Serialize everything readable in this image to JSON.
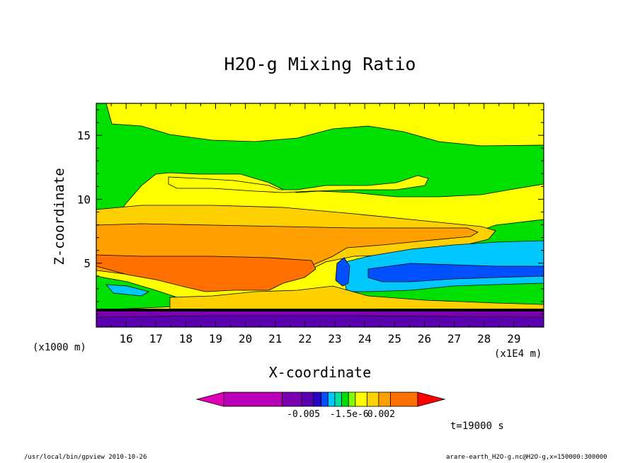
{
  "chart_data": {
    "type": "heatmap",
    "title": "H2O-g Mixing Ratio",
    "xlabel": "X-coordinate",
    "ylabel": "Z-coordinate",
    "x_unit_note": "(x1E4 m)",
    "y_unit_note": "(x1000 m)",
    "xlim": [
      15,
      30
    ],
    "ylim": [
      0,
      17.5
    ],
    "x_ticks": [
      16,
      17,
      18,
      19,
      20,
      21,
      22,
      23,
      24,
      25,
      26,
      27,
      28,
      29
    ],
    "y_ticks": [
      5,
      10,
      15
    ],
    "colorbar": {
      "colors": [
        "#e000b8",
        "#b800b8",
        "#7a00b0",
        "#5a00b0",
        "#2a00c8",
        "#0050ff",
        "#00c8ff",
        "#00e0a0",
        "#00e000",
        "#80ff00",
        "#ffff00",
        "#ffd000",
        "#ffa000",
        "#ff7000",
        "#ff0000"
      ],
      "tick_labels": [
        "-0.005",
        "-1.5e-6",
        "0.002"
      ]
    },
    "annotation": "t=19000 s"
  },
  "footer": {
    "left": "/usr/local/bin/gpview  2010-10-26",
    "right": "arare-earth_H2O-g.nc@H2O-g,x=150000:300000"
  }
}
